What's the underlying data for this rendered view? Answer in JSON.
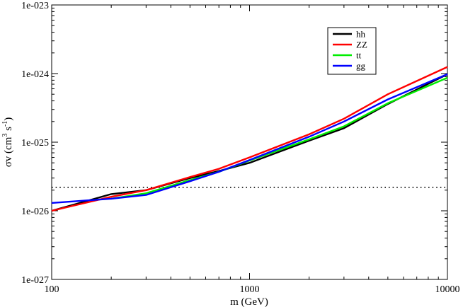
{
  "chart_data": {
    "type": "line",
    "title": "",
    "xlabel": "m (GeV)",
    "ylabel": {
      "base": "σv (cm",
      "sup1": "3",
      "mid": " s",
      "sup2": "-1",
      "end": ")"
    },
    "xscale": "log",
    "yscale": "log",
    "xlim": [
      100,
      10000
    ],
    "ylim": [
      1e-27,
      1e-23
    ],
    "x_ticks": [
      {
        "value": 100,
        "label": "100"
      },
      {
        "value": 1000,
        "label": "1000"
      },
      {
        "value": 10000,
        "label": "10000"
      }
    ],
    "y_ticks": [
      {
        "value": 1e-27,
        "label": "1e-027"
      },
      {
        "value": 1e-26,
        "label": "1e-026"
      },
      {
        "value": 1e-25,
        "label": "1e-025"
      },
      {
        "value": 1e-24,
        "label": "1e-024"
      },
      {
        "value": 1e-23,
        "label": "1e-023"
      }
    ],
    "grid": false,
    "legend_position": "top-right",
    "reference_line": {
      "y": 2.2e-26,
      "style": "dotted",
      "color": "#000000"
    },
    "series": [
      {
        "name": "hh",
        "color": "#000000",
        "x": [
          100,
          200,
          300,
          500,
          700,
          1000,
          2000,
          3000,
          5000,
          10000
        ],
        "y": [
          1e-26,
          1.75e-26,
          2e-26,
          3e-26,
          3.8e-26,
          5e-26,
          1.05e-25,
          1.6e-25,
          3.6e-25,
          9.8e-25
        ]
      },
      {
        "name": "ZZ",
        "color": "#ff0000",
        "x": [
          100,
          200,
          300,
          500,
          700,
          1000,
          2000,
          3000,
          5000,
          10000
        ],
        "y": [
          1e-26,
          1.6e-26,
          2e-26,
          3.1e-26,
          4.1e-26,
          6e-26,
          1.3e-25,
          2.2e-25,
          5e-25,
          1.25e-24
        ]
      },
      {
        "name": "tt",
        "color": "#00ee00",
        "x": [
          200,
          300,
          500,
          700,
          1000,
          2000,
          3000,
          5000,
          10000
        ],
        "y": [
          1.5e-26,
          1.8e-26,
          2.8e-26,
          3.7e-26,
          5.4e-26,
          1.1e-25,
          1.7e-25,
          3.7e-25,
          8.7e-25
        ]
      },
      {
        "name": "gg",
        "color": "#0000ff",
        "x": [
          100,
          200,
          300,
          500,
          700,
          1000,
          2000,
          3000,
          5000,
          10000
        ],
        "y": [
          1.3e-26,
          1.5e-26,
          1.7e-26,
          2.7e-26,
          3.7e-26,
          5.5e-26,
          1.2e-25,
          2e-25,
          4.2e-25,
          9.8e-25
        ]
      }
    ]
  }
}
